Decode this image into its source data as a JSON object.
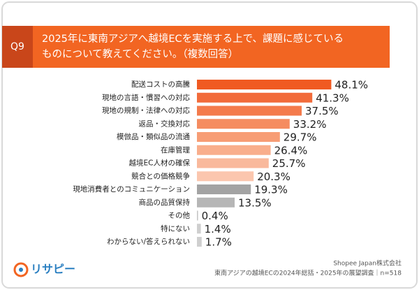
{
  "header": {
    "question": "Q9",
    "title_lines": [
      "2025年に東南アジアへ越境ECを実施する上で、課題に感じている",
      "ものについて教えてください。（複数回答）"
    ]
  },
  "chart_data": {
    "type": "bar",
    "orientation": "horizontal",
    "categories": [
      "配送コストの高騰",
      "現地の言語・慣習への対応",
      "現地の規制・法律への対応",
      "返品・交換対応",
      "模倣品・類似品の流通",
      "在庫管理",
      "越境EC人材の確保",
      "競合との価格競争",
      "現地消費者とのコミュニケーション",
      "商品の品質保持",
      "その他",
      "特にない",
      "わからない/答えられない"
    ],
    "values": [
      48.1,
      41.3,
      37.5,
      33.2,
      29.7,
      26.4,
      25.7,
      20.3,
      19.3,
      13.5,
      0.4,
      1.4,
      1.7
    ],
    "value_labels": [
      "48.1%",
      "41.3%",
      "37.5%",
      "33.2%",
      "29.7%",
      "26.4%",
      "25.7%",
      "20.3%",
      "19.3%",
      "13.5%",
      "0.4%",
      "1.4%",
      "1.7%"
    ],
    "colors": [
      "#f05a22",
      "#f26b3a",
      "#f47b4c",
      "#f58c60",
      "#f79d75",
      "#f9ae8c",
      "#f9b99c",
      "#fbc6ae",
      "#a3a3a3",
      "#b6b6b6",
      "#c6c6c6",
      "#cfcfcf",
      "#cfcfcf"
    ]
  },
  "footer": {
    "logo": "リサピー",
    "company": "Shopee Japan株式会社",
    "source": "東南アジアの越境ECの2024年総括・2025年の展望調査｜n=518"
  }
}
